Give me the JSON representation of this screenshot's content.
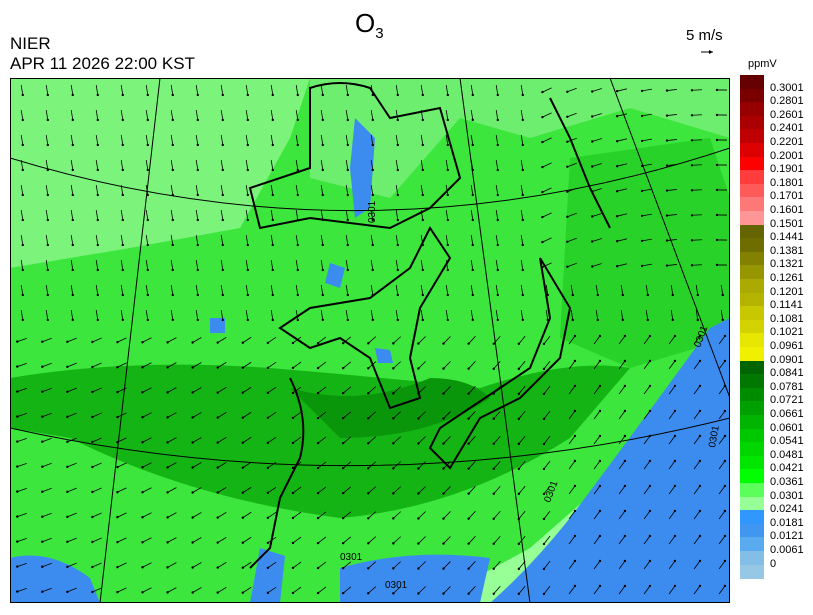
{
  "header": {
    "title_main": "O",
    "title_sub": "3",
    "organization": "NIER",
    "timestamp": "APR 11 2026 22:00 KST",
    "wind_scale_label": "5 m/s"
  },
  "map": {
    "contour_labels": [
      "0301",
      "0301",
      "0301",
      "0301",
      "0301",
      "0301"
    ],
    "background_color": "#3ce63c",
    "low_color": "#3c8cf0"
  },
  "legend": {
    "unit": "ppmV",
    "labels": [
      "0.3001",
      "0.2801",
      "0.2601",
      "0.2401",
      "0.2201",
      "0.2001",
      "0.1901",
      "0.1801",
      "0.1701",
      "0.1601",
      "0.1501",
      "0.1441",
      "0.1381",
      "0.1321",
      "0.1261",
      "0.1201",
      "0.1141",
      "0.1081",
      "0.1021",
      "0.0961",
      "0.0901",
      "0.0841",
      "0.0781",
      "0.0721",
      "0.0661",
      "0.0601",
      "0.0541",
      "0.0481",
      "0.0421",
      "0.0361",
      "0.0301",
      "0.0241",
      "0.0181",
      "0.0121",
      "0.0061",
      "0"
    ],
    "colors": [
      "#640000",
      "#7a0000",
      "#960000",
      "#aa0000",
      "#c00000",
      "#dc0000",
      "#ff0000",
      "#ff3c3c",
      "#ff5a5a",
      "#ff7878",
      "#ff9696",
      "#646400",
      "#6e6e00",
      "#828200",
      "#969600",
      "#aaaa00",
      "#b4b400",
      "#c8c800",
      "#d2d200",
      "#e6e600",
      "#f0f000",
      "#006400",
      "#007800",
      "#008c00",
      "#00a000",
      "#00b400",
      "#00c800",
      "#00d700",
      "#00e600",
      "#00ff00",
      "#5aff5a",
      "#96ff96",
      "#3296ff",
      "#4196f0",
      "#5aaaf0",
      "#82bee6",
      "#96c8e6"
    ]
  }
}
